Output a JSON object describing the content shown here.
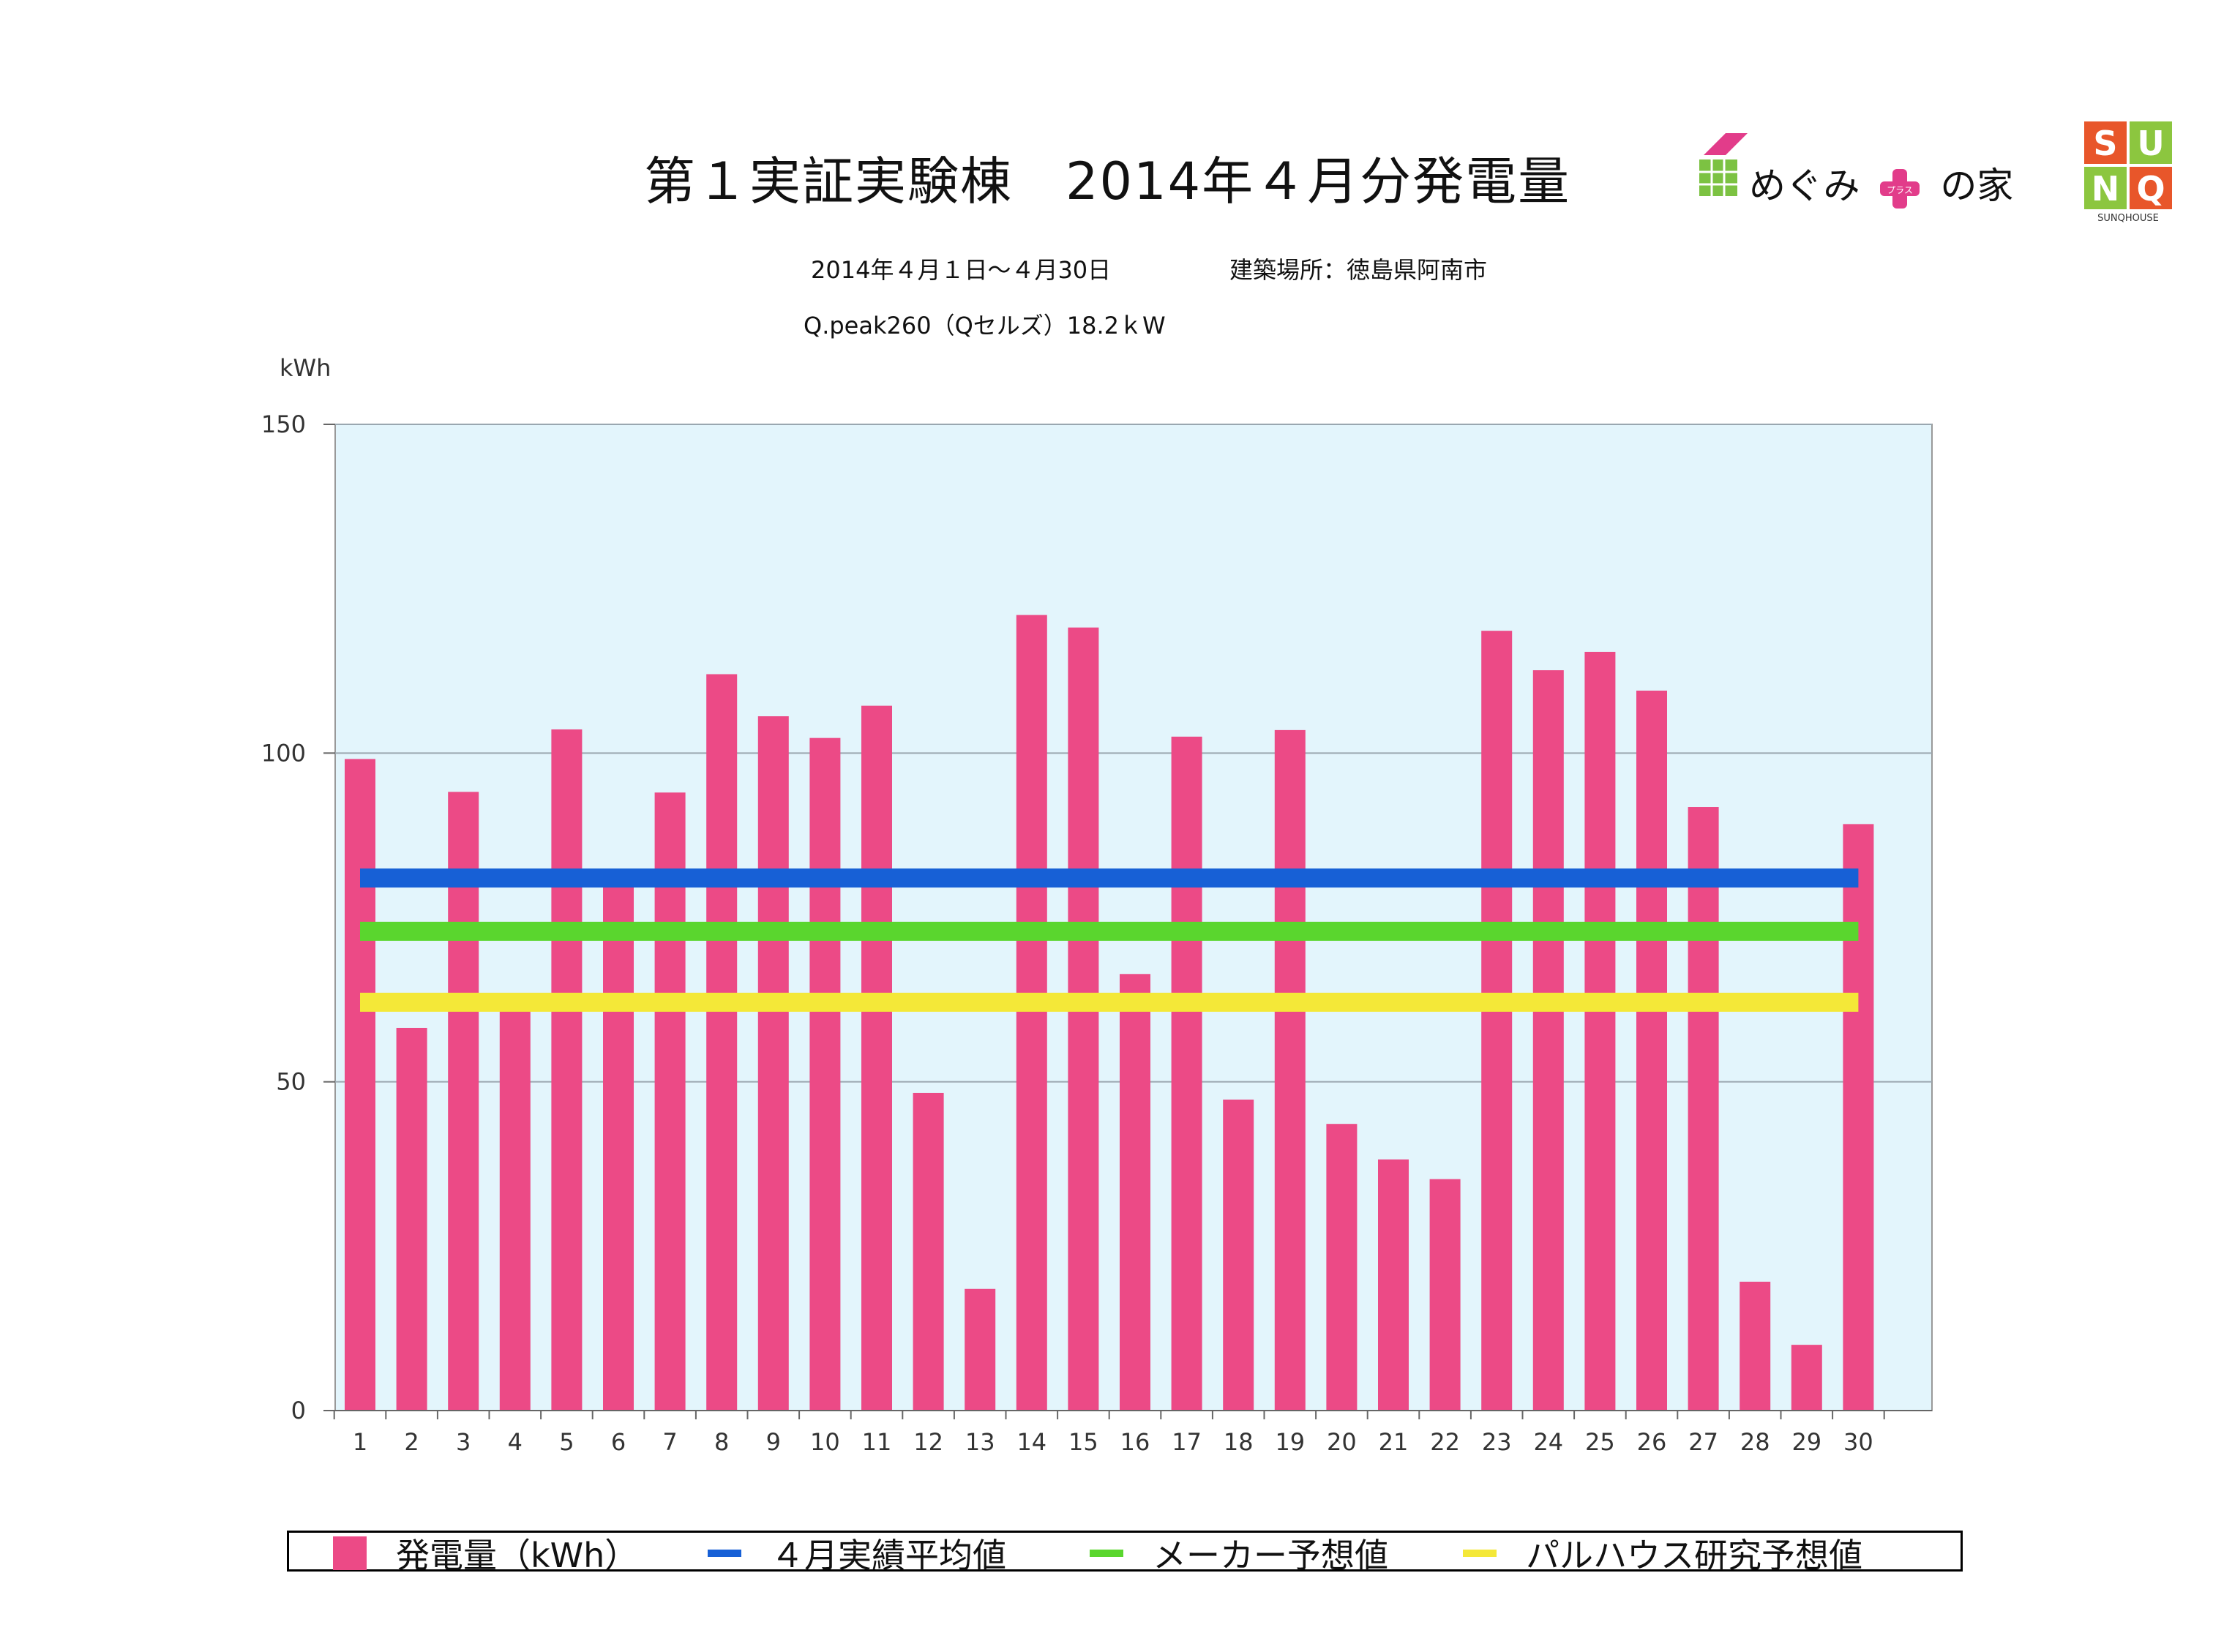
{
  "title": "第１実証実験棟　2014年４月分発電量",
  "subtitle_period": "2014年４月１日～４月30日",
  "subtitle_location": "建築場所：徳島県阿南市",
  "subtitle_panel": "Q.peak260（Qセルズ）18.2ｋW",
  "logo_megumi": {
    "text_left": "めぐみ",
    "text_plus": "プラス",
    "text_right": "の家"
  },
  "logo_sunq": {
    "letters": [
      "S",
      "U",
      "N",
      "Q"
    ],
    "caption": "SUNQHOUSE"
  },
  "colors": {
    "bar": "#ec4a86",
    "avg": "#1760d6",
    "maker": "#5ad62e",
    "research": "#f4e838",
    "plot_bg": "#e3f5fc"
  },
  "chart_data": {
    "type": "bar",
    "ylabel": "kWh",
    "ylim": [
      0,
      150
    ],
    "yticks": [
      "0",
      "50",
      "100",
      "150"
    ],
    "grid": true,
    "categories": [
      "1",
      "2",
      "3",
      "4",
      "5",
      "6",
      "7",
      "8",
      "9",
      "10",
      "11",
      "12",
      "13",
      "14",
      "15",
      "16",
      "17",
      "18",
      "19",
      "20",
      "21",
      "22",
      "23",
      "24",
      "25",
      "26",
      "27",
      "28",
      "29",
      "30"
    ],
    "series": [
      {
        "name": "発電量（kWh）",
        "type": "bar",
        "values": [
          99.1,
          58.2,
          94.1,
          60.8,
          103.6,
          79.9,
          94.0,
          112.0,
          105.6,
          102.3,
          107.2,
          48.3,
          18.5,
          121.0,
          119.1,
          66.4,
          102.5,
          47.3,
          103.5,
          43.6,
          38.2,
          35.2,
          118.6,
          112.6,
          115.4,
          109.5,
          91.8,
          19.6,
          10.0,
          89.2
        ]
      },
      {
        "name": "４月実績平均値",
        "type": "line",
        "value": 81.0
      },
      {
        "name": "メーカー予想値",
        "type": "line",
        "value": 72.9
      },
      {
        "name": "パルハウス研究予想値",
        "type": "line",
        "value": 62.1
      }
    ]
  }
}
